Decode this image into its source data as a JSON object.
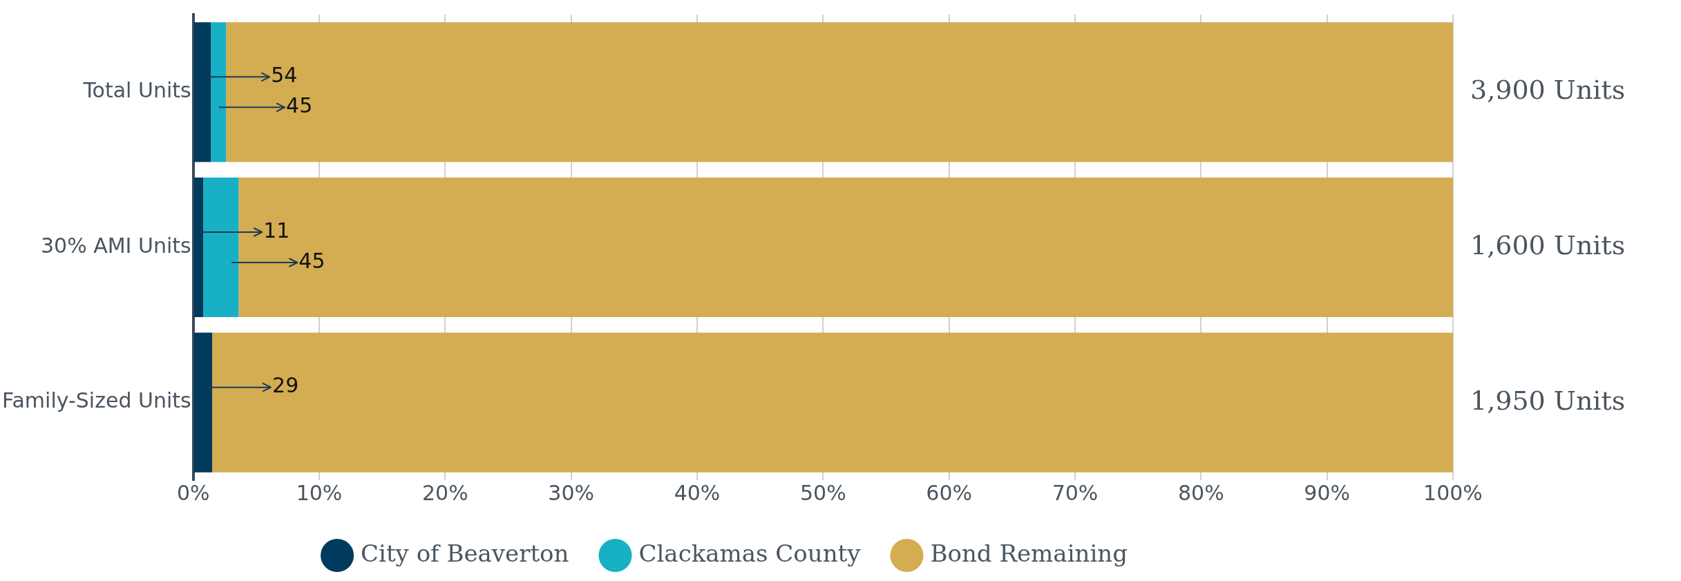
{
  "chart_data": {
    "type": "bar",
    "orientation": "horizontal",
    "stacked": true,
    "categories": [
      "Total Units",
      "30% AMI Units",
      "Family-Sized Units"
    ],
    "series": [
      {
        "name": "City of Beaverton",
        "color": "#003a5d",
        "values": [
          1.4,
          0.8,
          1.5
        ]
      },
      {
        "name": "Clackamas County",
        "color": "#17b0c4",
        "values": [
          1.2,
          2.8,
          0
        ]
      },
      {
        "name": "Bond Remaining",
        "color": "#d4ac52",
        "values": [
          97.4,
          96.4,
          98.5
        ]
      }
    ],
    "xlim": [
      0,
      100
    ],
    "xticks": [
      {
        "value": 0,
        "label": "0%"
      },
      {
        "value": 10,
        "label": "10%"
      },
      {
        "value": 20,
        "label": "20%"
      },
      {
        "value": 30,
        "label": "30%"
      },
      {
        "value": 40,
        "label": "40%"
      },
      {
        "value": 50,
        "label": "50%"
      },
      {
        "value": 60,
        "label": "60%"
      },
      {
        "value": 70,
        "label": "70%"
      },
      {
        "value": 80,
        "label": "80%"
      },
      {
        "value": 90,
        "label": "90%"
      },
      {
        "value": 100,
        "label": "100%"
      }
    ],
    "annotations": [
      {
        "text": "54",
        "x": 1.4,
        "y": "Total Units"
      },
      {
        "text": "45",
        "x": 2.6,
        "y": "Total Units"
      },
      {
        "text": "11",
        "x": 0.8,
        "y": "30% AMI Units"
      },
      {
        "text": "45",
        "x": 3.6,
        "y": "30% AMI Units"
      },
      {
        "text": "29",
        "x": 1.5,
        "y": "Family-Sized Units"
      },
      {
        "text": "3,900 Units",
        "x": 100,
        "y": "Total Units"
      },
      {
        "text": "1,600 Units",
        "x": 100,
        "y": "30% AMI Units"
      },
      {
        "text": "1,950 Units",
        "x": 100,
        "y": "Family-Sized Units"
      }
    ],
    "grid": "x",
    "legend": "bottom"
  }
}
